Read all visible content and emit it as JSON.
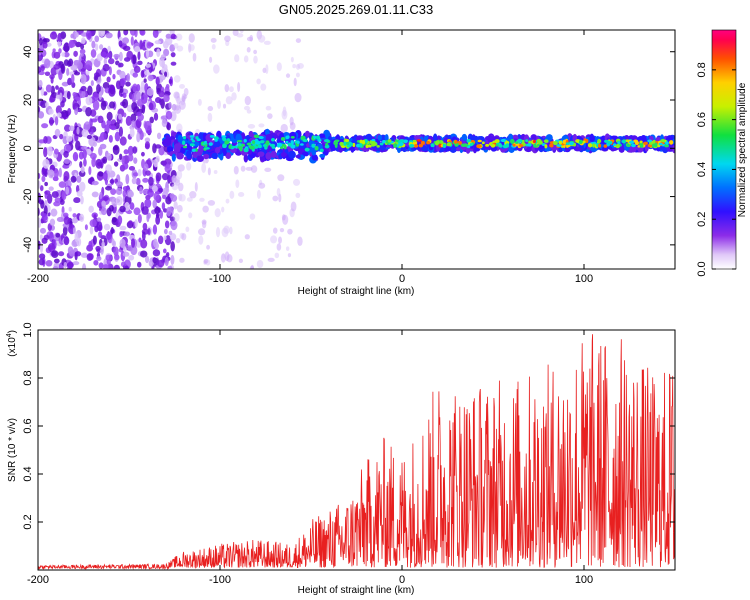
{
  "title": "GN05.2025.269.01.11.C33",
  "chart_data": [
    {
      "type": "heatmap",
      "xlabel": "Height of straight line (km)",
      "ylabel": "Frequency (Hz)",
      "xlim": [
        -200,
        150
      ],
      "ylim": [
        -50,
        49
      ],
      "x_ticks": [
        -200,
        -100,
        0,
        100
      ],
      "y_ticks": [
        -40,
        -20,
        0,
        20,
        40
      ],
      "colorbar": {
        "label": "Normalized spectral amplitude",
        "range": [
          0.0,
          0.96
        ],
        "ticks": [
          "0.0",
          "0.2",
          "0.4",
          "0.6",
          "0.8"
        ]
      },
      "description_points": {
        "noise_region_x": [
          -200,
          -125
        ],
        "band_center_freq": 2,
        "band_x": [
          -130,
          150
        ]
      }
    },
    {
      "type": "line",
      "xlabel": "Height of straight line (km)",
      "ylabel": "SNR (10 * v/v)",
      "y_multiplier": "(x10^4)",
      "xlim": [
        -200,
        150
      ],
      "ylim": [
        0,
        1.0
      ],
      "x_ticks": [
        -200,
        -100,
        0,
        100
      ],
      "y_ticks": [
        "0.2",
        "0.4",
        "0.6",
        "0.8",
        "1.0"
      ],
      "color": "#e82020",
      "envelope": {
        "x": [
          -200,
          -130,
          -120,
          -100,
          -80,
          -60,
          -50,
          -40,
          -30,
          -20,
          -10,
          0,
          10,
          20,
          40,
          60,
          80,
          100,
          120,
          140,
          150
        ],
        "y": [
          0.015,
          0.02,
          0.07,
          0.1,
          0.12,
          0.1,
          0.2,
          0.25,
          0.3,
          0.45,
          0.55,
          0.5,
          0.62,
          0.8,
          0.78,
          0.8,
          0.85,
          1.0,
          0.98,
          0.8,
          0.9
        ]
      }
    }
  ]
}
